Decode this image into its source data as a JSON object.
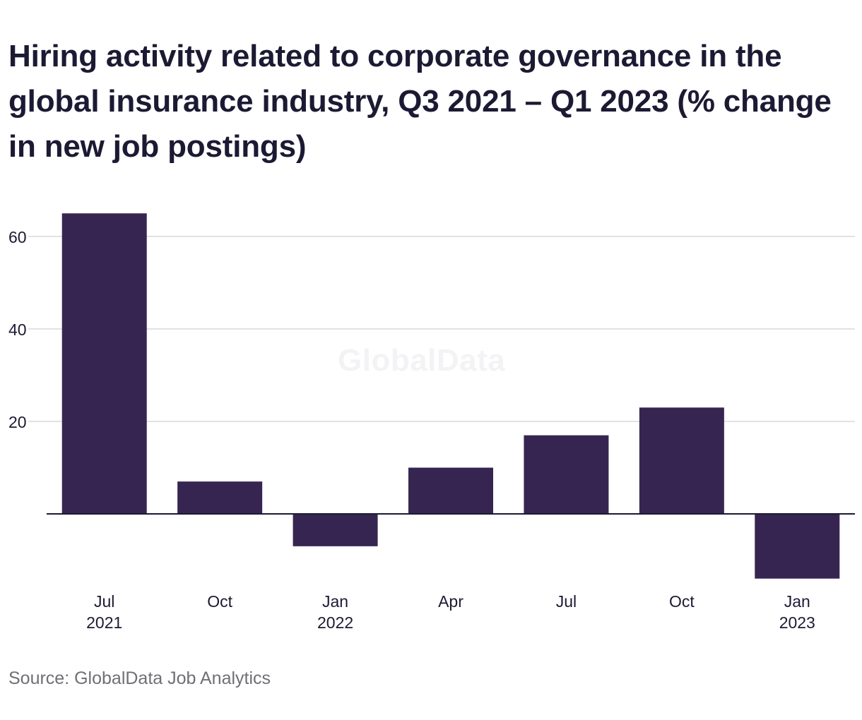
{
  "title": "Hiring activity related to corporate governance in the global insurance industry, Q3 2021 – Q1 2023 (% change in new job postings)",
  "source": "Source: GlobalData Job Analytics",
  "watermark": "GlobalData",
  "colors": {
    "bar": "#372551",
    "grid": "#d9d9de",
    "zero_line": "#1c1a33",
    "text": "#1c1a33",
    "source_text": "#6f6f76"
  },
  "chart_data": {
    "type": "bar",
    "categories": [
      [
        "Jul",
        "2021"
      ],
      [
        "Oct",
        ""
      ],
      [
        "Jan",
        "2022"
      ],
      [
        "Apr",
        ""
      ],
      [
        "Jul",
        ""
      ],
      [
        "Oct",
        ""
      ],
      [
        "Jan",
        "2023"
      ]
    ],
    "values": [
      65,
      7,
      -7,
      10,
      17,
      23,
      -14
    ],
    "title": "Hiring activity related to corporate governance in the global insurance industry, Q3 2021 – Q1 2023 (% change in new job postings)",
    "xlabel": "",
    "ylabel": "",
    "ylim": [
      -14,
      65
    ],
    "yticks": [
      20,
      40,
      60
    ],
    "grid": true,
    "legend": "none"
  }
}
